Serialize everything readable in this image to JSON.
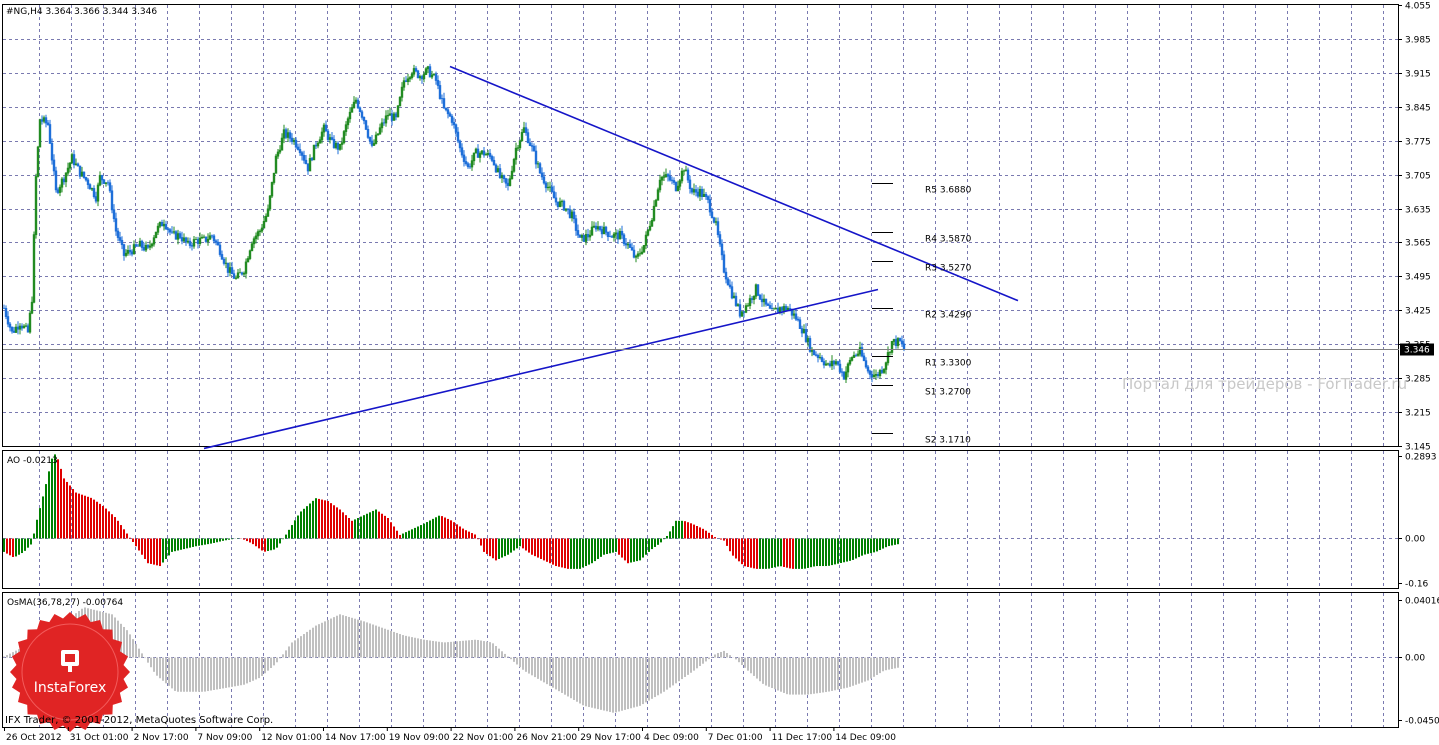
{
  "chart_data": [
    {
      "type": "candlestick",
      "header": "#NG,H4  3.364 3.366 3.344 3.346",
      "current_price": "3.346",
      "ylim": [
        3.145,
        4.055
      ],
      "y_ticks": [
        "4.055",
        "3.985",
        "3.915",
        "3.845",
        "3.775",
        "3.705",
        "3.635",
        "3.565",
        "3.495",
        "3.425",
        "3.355",
        "3.285",
        "3.215",
        "3.145"
      ],
      "x_ticks": [
        "26 Oct 2012",
        "31 Oct 01:00",
        "2 Nov 17:00",
        "7 Nov 09:00",
        "12 Nov 01:00",
        "14 Nov 17:00",
        "19 Nov 09:00",
        "22 Nov 01:00",
        "26 Nov 21:00",
        "29 Nov 17:00",
        "4 Dec 09:00",
        "7 Dec 01:00",
        "11 Dec 17:00",
        "14 Dec 09:00"
      ],
      "close_path": [
        [
          0,
          3.43
        ],
        [
          4,
          3.38
        ],
        [
          8,
          3.4
        ],
        [
          12,
          3.38
        ],
        [
          14,
          3.45
        ],
        [
          16,
          3.7
        ],
        [
          18,
          3.82
        ],
        [
          22,
          3.81
        ],
        [
          26,
          3.67
        ],
        [
          30,
          3.7
        ],
        [
          34,
          3.74
        ],
        [
          38,
          3.71
        ],
        [
          42,
          3.69
        ],
        [
          46,
          3.66
        ],
        [
          48,
          3.7
        ],
        [
          52,
          3.69
        ],
        [
          56,
          3.59
        ],
        [
          60,
          3.54
        ],
        [
          64,
          3.55
        ],
        [
          68,
          3.56
        ],
        [
          72,
          3.55
        ],
        [
          76,
          3.59
        ],
        [
          80,
          3.61
        ],
        [
          84,
          3.58
        ],
        [
          88,
          3.58
        ],
        [
          92,
          3.56
        ],
        [
          96,
          3.57
        ],
        [
          100,
          3.57
        ],
        [
          104,
          3.58
        ],
        [
          108,
          3.55
        ],
        [
          112,
          3.51
        ],
        [
          116,
          3.49
        ],
        [
          120,
          3.51
        ],
        [
          124,
          3.57
        ],
        [
          128,
          3.59
        ],
        [
          132,
          3.63
        ],
        [
          136,
          3.74
        ],
        [
          140,
          3.79
        ],
        [
          144,
          3.78
        ],
        [
          148,
          3.76
        ],
        [
          152,
          3.72
        ],
        [
          156,
          3.77
        ],
        [
          160,
          3.8
        ],
        [
          164,
          3.77
        ],
        [
          168,
          3.76
        ],
        [
          172,
          3.82
        ],
        [
          176,
          3.86
        ],
        [
          180,
          3.82
        ],
        [
          184,
          3.76
        ],
        [
          188,
          3.8
        ],
        [
          192,
          3.83
        ],
        [
          196,
          3.82
        ],
        [
          200,
          3.9
        ],
        [
          204,
          3.92
        ],
        [
          208,
          3.91
        ],
        [
          212,
          3.92
        ],
        [
          216,
          3.9
        ],
        [
          220,
          3.84
        ],
        [
          224,
          3.82
        ],
        [
          228,
          3.76
        ],
        [
          232,
          3.72
        ],
        [
          236,
          3.75
        ],
        [
          240,
          3.75
        ],
        [
          244,
          3.74
        ],
        [
          248,
          3.7
        ],
        [
          252,
          3.68
        ],
        [
          256,
          3.76
        ],
        [
          260,
          3.8
        ],
        [
          264,
          3.76
        ],
        [
          268,
          3.71
        ],
        [
          272,
          3.68
        ],
        [
          276,
          3.65
        ],
        [
          280,
          3.64
        ],
        [
          284,
          3.62
        ],
        [
          288,
          3.57
        ],
        [
          292,
          3.58
        ],
        [
          296,
          3.6
        ],
        [
          300,
          3.59
        ],
        [
          304,
          3.58
        ],
        [
          308,
          3.58
        ],
        [
          312,
          3.56
        ],
        [
          316,
          3.53
        ],
        [
          320,
          3.56
        ],
        [
          324,
          3.62
        ],
        [
          328,
          3.7
        ],
        [
          332,
          3.7
        ],
        [
          336,
          3.68
        ],
        [
          340,
          3.72
        ],
        [
          344,
          3.67
        ],
        [
          348,
          3.67
        ],
        [
          352,
          3.65
        ],
        [
          356,
          3.6
        ],
        [
          360,
          3.51
        ],
        [
          364,
          3.46
        ],
        [
          368,
          3.42
        ],
        [
          372,
          3.44
        ],
        [
          376,
          3.47
        ],
        [
          380,
          3.44
        ],
        [
          384,
          3.42
        ],
        [
          388,
          3.43
        ],
        [
          392,
          3.43
        ],
        [
          396,
          3.41
        ],
        [
          400,
          3.38
        ],
        [
          404,
          3.34
        ],
        [
          408,
          3.33
        ],
        [
          412,
          3.31
        ],
        [
          416,
          3.32
        ],
        [
          420,
          3.29
        ],
        [
          424,
          3.33
        ],
        [
          428,
          3.34
        ],
        [
          432,
          3.3
        ],
        [
          436,
          3.29
        ],
        [
          440,
          3.31
        ],
        [
          444,
          3.36
        ],
        [
          448,
          3.36
        ],
        [
          450,
          3.346
        ]
      ],
      "trendlines": [
        {
          "name": "resistance",
          "from": [
            223,
            3.928
          ],
          "to": [
            507,
            3.445
          ]
        },
        {
          "name": "support",
          "from": [
            100,
            3.14
          ],
          "to": [
            437,
            3.468
          ]
        }
      ],
      "pivots": [
        {
          "label": "R5 3.6880",
          "value": 3.688
        },
        {
          "label": "R4 3.5870",
          "value": 3.587
        },
        {
          "label": "R3 3.5270",
          "value": 3.527
        },
        {
          "label": "R2 3.4290",
          "value": 3.429
        },
        {
          "label": "R1 3.3300",
          "value": 3.33
        },
        {
          "label": "S1 3.2700",
          "value": 3.27
        },
        {
          "label": "S2 3.1710",
          "value": 3.171
        }
      ],
      "watermark": "Портал для трейдеров - ForTrader.ru"
    },
    {
      "type": "bar",
      "name": "AO",
      "header": "AO -0.0213",
      "ylim": [
        -0.16,
        0.2893
      ],
      "y_ticks": [
        "0.2893",
        "0.00",
        "-0.16"
      ],
      "key_points": [
        [
          0,
          -0.05
        ],
        [
          5,
          -0.07
        ],
        [
          10,
          -0.05
        ],
        [
          14,
          -0.02
        ],
        [
          16,
          0.05
        ],
        [
          20,
          0.16
        ],
        [
          24,
          0.28
        ],
        [
          26,
          0.3
        ],
        [
          30,
          0.21
        ],
        [
          36,
          0.16
        ],
        [
          44,
          0.14
        ],
        [
          50,
          0.11
        ],
        [
          56,
          0.07
        ],
        [
          62,
          0.01
        ],
        [
          66,
          -0.03
        ],
        [
          72,
          -0.09
        ],
        [
          78,
          -0.1
        ],
        [
          84,
          -0.05
        ],
        [
          90,
          -0.04
        ],
        [
          96,
          -0.03
        ],
        [
          104,
          -0.02
        ],
        [
          110,
          -0.01
        ],
        [
          118,
          0.0
        ],
        [
          124,
          -0.02
        ],
        [
          130,
          -0.05
        ],
        [
          136,
          -0.04
        ],
        [
          140,
          0.0
        ],
        [
          148,
          0.09
        ],
        [
          156,
          0.14
        ],
        [
          162,
          0.13
        ],
        [
          168,
          0.1
        ],
        [
          174,
          0.06
        ],
        [
          180,
          0.08
        ],
        [
          186,
          0.1
        ],
        [
          192,
          0.07
        ],
        [
          198,
          0.01
        ],
        [
          204,
          0.03
        ],
        [
          210,
          0.05
        ],
        [
          218,
          0.08
        ],
        [
          224,
          0.06
        ],
        [
          230,
          0.03
        ],
        [
          236,
          0.01
        ],
        [
          240,
          -0.05
        ],
        [
          246,
          -0.08
        ],
        [
          252,
          -0.06
        ],
        [
          258,
          -0.03
        ],
        [
          264,
          -0.06
        ],
        [
          270,
          -0.08
        ],
        [
          276,
          -0.1
        ],
        [
          282,
          -0.11
        ],
        [
          288,
          -0.11
        ],
        [
          294,
          -0.09
        ],
        [
          300,
          -0.06
        ],
        [
          306,
          -0.05
        ],
        [
          312,
          -0.09
        ],
        [
          318,
          -0.08
        ],
        [
          324,
          -0.04
        ],
        [
          328,
          -0.02
        ],
        [
          332,
          0.01
        ],
        [
          336,
          0.06
        ],
        [
          340,
          0.06
        ],
        [
          344,
          0.05
        ],
        [
          350,
          0.03
        ],
        [
          356,
          0.0
        ],
        [
          360,
          -0.01
        ],
        [
          364,
          -0.06
        ],
        [
          370,
          -0.1
        ],
        [
          376,
          -0.11
        ],
        [
          382,
          -0.11
        ],
        [
          388,
          -0.1
        ],
        [
          394,
          -0.11
        ],
        [
          400,
          -0.11
        ],
        [
          406,
          -0.1
        ],
        [
          412,
          -0.1
        ],
        [
          418,
          -0.09
        ],
        [
          424,
          -0.08
        ],
        [
          430,
          -0.06
        ],
        [
          436,
          -0.05
        ],
        [
          442,
          -0.03
        ],
        [
          448,
          -0.0213
        ]
      ]
    },
    {
      "type": "bar",
      "name": "OsMA",
      "header": "OsMA(36,78,27) -0.00764",
      "ylim": [
        -0.04505,
        0.04016
      ],
      "y_ticks": [
        "0.04016",
        "0.00",
        "-0.04505"
      ],
      "key_points": [
        [
          0,
          0.0
        ],
        [
          20,
          0.014
        ],
        [
          40,
          0.035
        ],
        [
          54,
          0.03
        ],
        [
          62,
          0.018
        ],
        [
          70,
          0.0
        ],
        [
          76,
          -0.013
        ],
        [
          86,
          -0.025
        ],
        [
          100,
          -0.025
        ],
        [
          120,
          -0.02
        ],
        [
          128,
          -0.015
        ],
        [
          136,
          -0.005
        ],
        [
          144,
          0.01
        ],
        [
          156,
          0.022
        ],
        [
          168,
          0.03
        ],
        [
          180,
          0.025
        ],
        [
          190,
          0.02
        ],
        [
          200,
          0.015
        ],
        [
          210,
          0.012
        ],
        [
          220,
          0.01
        ],
        [
          236,
          0.012
        ],
        [
          244,
          0.01
        ],
        [
          252,
          0.0
        ],
        [
          260,
          -0.01
        ],
        [
          272,
          -0.02
        ],
        [
          290,
          -0.035
        ],
        [
          305,
          -0.04
        ],
        [
          318,
          -0.035
        ],
        [
          330,
          -0.025
        ],
        [
          345,
          -0.01
        ],
        [
          356,
          0.002
        ],
        [
          360,
          0.004
        ],
        [
          366,
          -0.002
        ],
        [
          372,
          -0.01
        ],
        [
          380,
          -0.02
        ],
        [
          392,
          -0.027
        ],
        [
          402,
          -0.027
        ],
        [
          412,
          -0.025
        ],
        [
          422,
          -0.022
        ],
        [
          432,
          -0.017
        ],
        [
          440,
          -0.01
        ],
        [
          448,
          -0.00764
        ]
      ]
    }
  ],
  "footer": "IFX Trader,  © 2001-2012, MetaQuotes Software Corp.",
  "logo": "InstaForex",
  "colors": {
    "up": "#228B22",
    "down": "#1e6fd9",
    "trend": "#1515c8",
    "ao_up": "#008000",
    "ao_down": "#e00000",
    "osma": "#c0c0c0",
    "grid": "#7a7ab0"
  }
}
